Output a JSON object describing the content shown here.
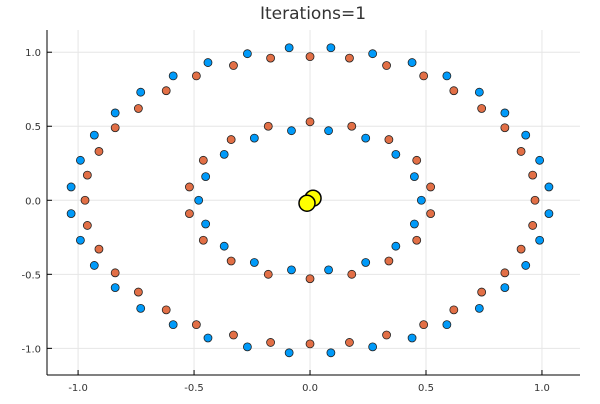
{
  "chart_data": {
    "type": "scatter",
    "title": "Iterations=1",
    "xlabel": "",
    "ylabel": "",
    "xlim": [
      -1.134,
      1.164
    ],
    "ylim": [
      -1.18,
      1.15
    ],
    "xticks": [
      -1.0,
      -0.5,
      0.0,
      0.5,
      1.0
    ],
    "xtick_labels": [
      "-1.0",
      "-0.5",
      "0.0",
      "0.5",
      "1.0"
    ],
    "yticks": [
      -1.0,
      -0.5,
      0.0,
      0.5,
      1.0
    ],
    "ytick_labels": [
      "-1.0",
      "-0.5",
      "0.0",
      "0.5",
      "1.0"
    ],
    "grid": true,
    "legend": "none",
    "series": [
      {
        "color": "#e26f46",
        "points": [
          [
            0.97,
            0
          ],
          [
            0.96,
            0.17
          ],
          [
            0.91,
            0.33
          ],
          [
            0.84,
            0.49
          ],
          [
            0.74,
            0.62
          ],
          [
            0.62,
            0.74
          ],
          [
            0.49,
            0.84
          ],
          [
            0.33,
            0.91
          ],
          [
            0.17,
            0.96
          ],
          [
            0,
            0.97
          ],
          [
            -0.17,
            0.96
          ],
          [
            -0.33,
            0.91
          ],
          [
            -0.49,
            0.84
          ],
          [
            -0.62,
            0.74
          ],
          [
            -0.74,
            0.62
          ],
          [
            -0.84,
            0.49
          ],
          [
            -0.91,
            0.33
          ],
          [
            -0.96,
            0.17
          ],
          [
            -0.97,
            0
          ],
          [
            -0.96,
            -0.17
          ],
          [
            -0.91,
            -0.33
          ],
          [
            -0.84,
            -0.49
          ],
          [
            -0.74,
            -0.62
          ],
          [
            -0.62,
            -0.74
          ],
          [
            -0.49,
            -0.84
          ],
          [
            -0.33,
            -0.91
          ],
          [
            -0.17,
            -0.96
          ],
          [
            0,
            -0.97
          ],
          [
            0.17,
            -0.96
          ],
          [
            0.33,
            -0.91
          ],
          [
            0.49,
            -0.84
          ],
          [
            0.62,
            -0.74
          ],
          [
            0.74,
            -0.62
          ],
          [
            0.84,
            -0.49
          ],
          [
            0.91,
            -0.33
          ],
          [
            0.96,
            -0.17
          ],
          [
            0.52,
            0.09
          ],
          [
            0.46,
            0.27
          ],
          [
            0.34,
            0.41
          ],
          [
            0.18,
            0.5
          ],
          [
            0,
            0.53
          ],
          [
            -0.18,
            0.5
          ],
          [
            -0.34,
            0.41
          ],
          [
            -0.46,
            0.27
          ],
          [
            -0.52,
            0.09
          ],
          [
            -0.52,
            -0.09
          ],
          [
            -0.46,
            -0.27
          ],
          [
            -0.34,
            -0.41
          ],
          [
            -0.18,
            -0.5
          ],
          [
            0,
            -0.53
          ],
          [
            0.18,
            -0.5
          ],
          [
            0.34,
            -0.41
          ],
          [
            0.46,
            -0.27
          ],
          [
            0.52,
            -0.09
          ]
        ]
      },
      {
        "color": "#009af9",
        "points": [
          [
            1.03,
            0.09
          ],
          [
            0.99,
            0.27
          ],
          [
            0.93,
            0.44
          ],
          [
            0.84,
            0.59
          ],
          [
            0.73,
            0.73
          ],
          [
            0.59,
            0.84
          ],
          [
            0.44,
            0.93
          ],
          [
            0.27,
            0.99
          ],
          [
            0.09,
            1.03
          ],
          [
            -0.09,
            1.03
          ],
          [
            -0.27,
            0.99
          ],
          [
            -0.44,
            0.93
          ],
          [
            -0.59,
            0.84
          ],
          [
            -0.73,
            0.73
          ],
          [
            -0.84,
            0.59
          ],
          [
            -0.93,
            0.44
          ],
          [
            -0.99,
            0.27
          ],
          [
            -1.03,
            0.09
          ],
          [
            -1.03,
            -0.09
          ],
          [
            -0.99,
            -0.27
          ],
          [
            -0.93,
            -0.44
          ],
          [
            -0.84,
            -0.59
          ],
          [
            -0.73,
            -0.73
          ],
          [
            -0.59,
            -0.84
          ],
          [
            -0.44,
            -0.93
          ],
          [
            -0.27,
            -0.99
          ],
          [
            -0.09,
            -1.03
          ],
          [
            0.09,
            -1.03
          ],
          [
            0.27,
            -0.99
          ],
          [
            0.44,
            -0.93
          ],
          [
            0.59,
            -0.84
          ],
          [
            0.73,
            -0.73
          ],
          [
            0.84,
            -0.59
          ],
          [
            0.93,
            -0.44
          ],
          [
            0.99,
            -0.27
          ],
          [
            1.03,
            -0.09
          ],
          [
            0.48,
            0
          ],
          [
            0.45,
            0.16
          ],
          [
            0.37,
            0.31
          ],
          [
            0.24,
            0.42
          ],
          [
            0.08,
            0.47
          ],
          [
            -0.08,
            0.47
          ],
          [
            -0.24,
            0.42
          ],
          [
            -0.37,
            0.31
          ],
          [
            -0.45,
            0.16
          ],
          [
            -0.48,
            0
          ],
          [
            -0.45,
            -0.16
          ],
          [
            -0.37,
            -0.31
          ],
          [
            -0.24,
            -0.42
          ],
          [
            -0.08,
            -0.47
          ],
          [
            0.08,
            -0.47
          ],
          [
            0.24,
            -0.42
          ],
          [
            0.37,
            -0.31
          ],
          [
            0.45,
            -0.16
          ]
        ]
      }
    ],
    "centroids": {
      "color": "#ffff00",
      "points": [
        [
          0.013,
          0.014
        ],
        [
          -0.013,
          -0.02
        ]
      ]
    }
  }
}
